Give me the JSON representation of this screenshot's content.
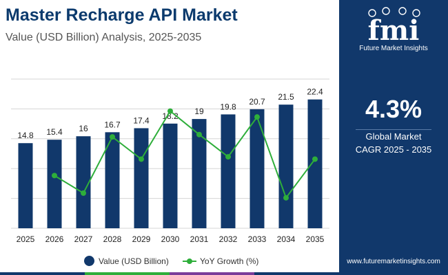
{
  "header": {
    "title": "Master Recharge API Market",
    "subtitle": "Value (USD Billion) Analysis, 2025-2035"
  },
  "sidebar": {
    "brand": "fmi",
    "brand_tagline": "Future Market Insights",
    "cagr_value": "4.3%",
    "cagr_line1": "Global Market",
    "cagr_line2": "CAGR 2025 - 2035",
    "website": "www.futuremarketinsights.com"
  },
  "legend": {
    "bar_label": "Value (USD Billion)",
    "line_label": "YoY Growth (%)"
  },
  "colors": {
    "bar": "#11386b",
    "line": "#2eae3a",
    "grid": "#d5d5d5",
    "sidebar": "#11386b",
    "strip": [
      "#11386b",
      "#2eae3a",
      "#7a3d9a",
      "#11386b"
    ]
  },
  "chart_data": {
    "type": "bar",
    "title": "Master Recharge API Market",
    "subtitle": "Value (USD Billion) Analysis, 2025-2035",
    "categories": [
      "2025",
      "2026",
      "2027",
      "2028",
      "2029",
      "2030",
      "2031",
      "2032",
      "2033",
      "2034",
      "2035"
    ],
    "series": [
      {
        "name": "Value (USD Billion)",
        "type": "bar",
        "values": [
          14.8,
          15.4,
          16,
          16.7,
          17.4,
          18.2,
          19,
          19.8,
          20.7,
          21.5,
          22.4
        ],
        "labels": [
          "14.8",
          "15.4",
          "16",
          "16.7",
          "17.4",
          "18.2",
          "19",
          "19.8",
          "20.7",
          "21.5",
          "22.4"
        ]
      },
      {
        "name": "YoY Growth (%)",
        "type": "line",
        "x": [
          "2026",
          "2027",
          "2028",
          "2029",
          "2030",
          "2031",
          "2032",
          "2033",
          "2034",
          "2035"
        ],
        "values": [
          4.05,
          3.9,
          4.38,
          4.19,
          4.6,
          4.4,
          4.21,
          4.55,
          3.86,
          4.19
        ]
      }
    ],
    "bar_axis_range": [
      0,
      27.5
    ],
    "line_axis_range": [
      3.6,
      4.95
    ],
    "grid": true,
    "gridline_count": 6,
    "legend_position": "bottom"
  }
}
